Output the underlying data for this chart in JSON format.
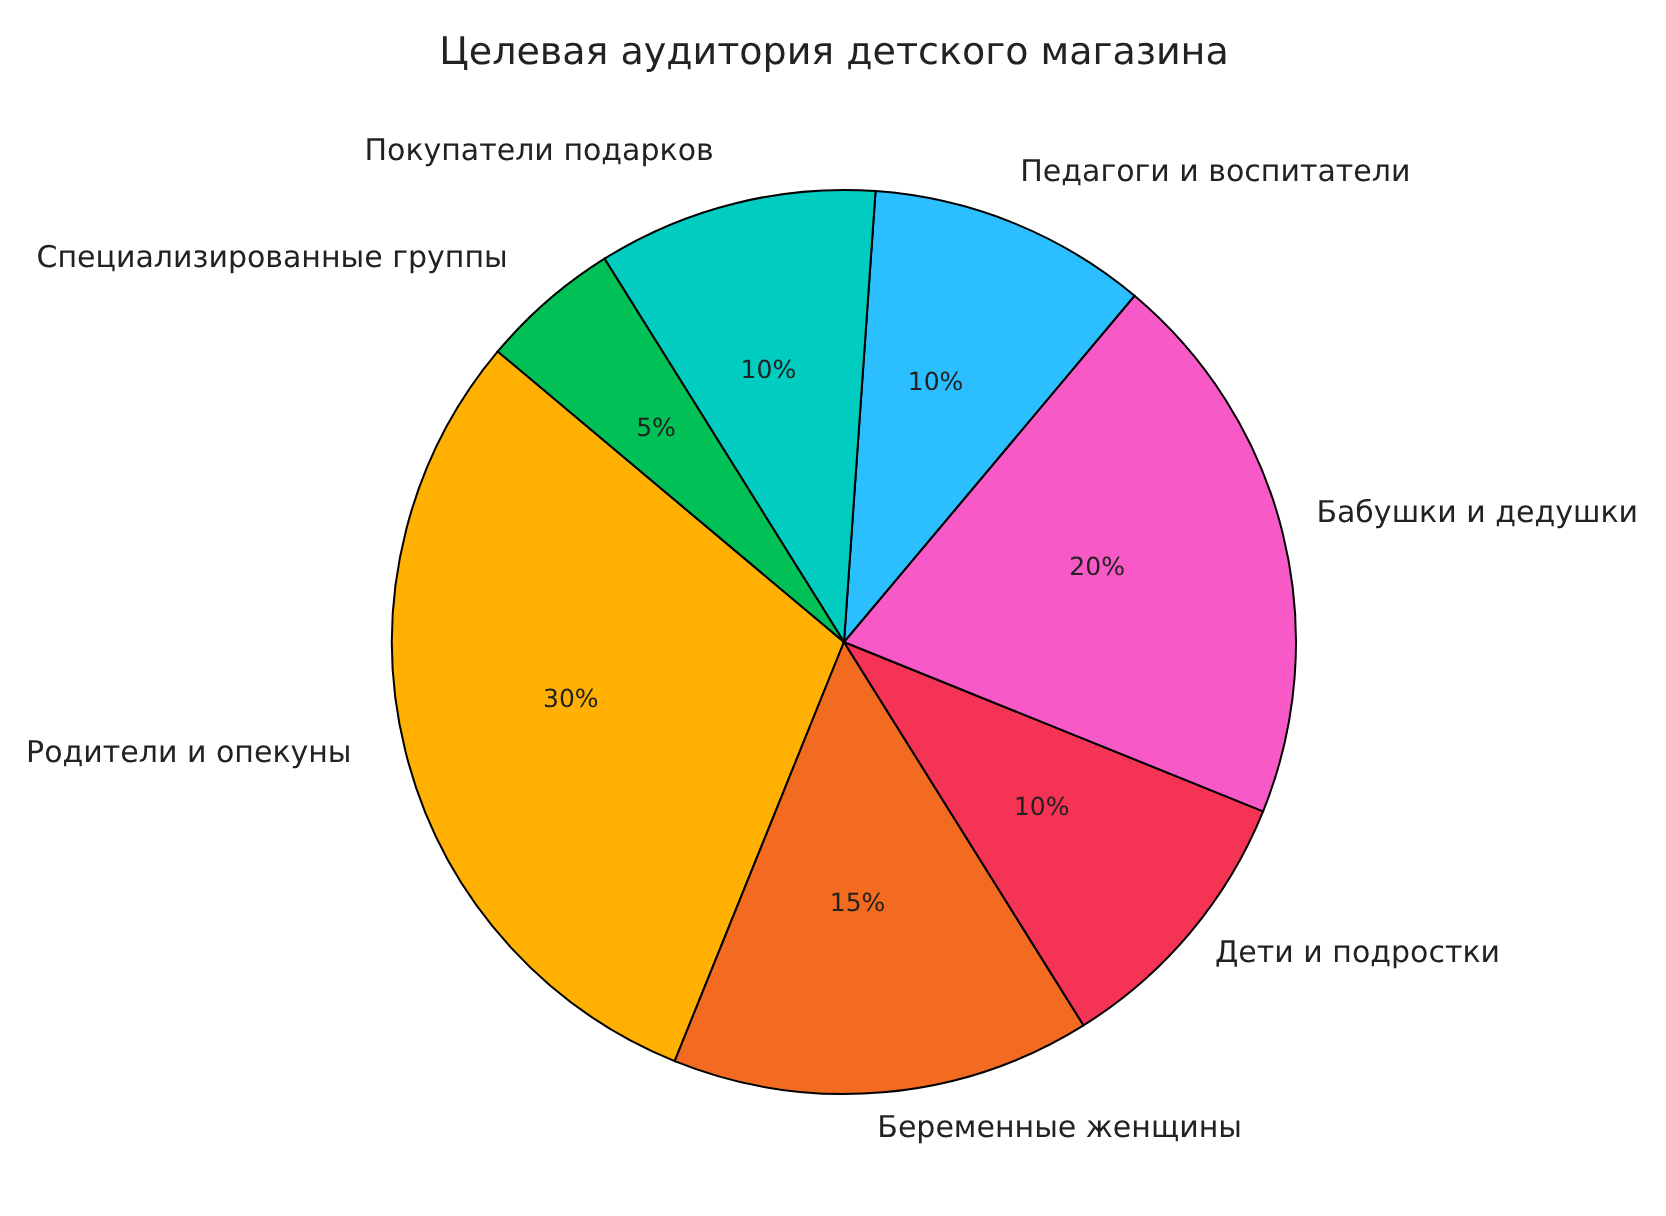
{
  "chart_data": {
    "type": "pie",
    "title": "Целевая аудитория детского магазина",
    "categories": [
      "Родители и опекуны",
      "Беременные женщины",
      "Дети и подростки",
      "Бабушки и дедушки",
      "Педагоги и воспитатели",
      "Покупатели подарков",
      "Специализированные группы"
    ],
    "values": [
      30,
      15,
      10,
      20,
      10,
      10,
      5
    ],
    "value_labels": [
      "30%",
      "15%",
      "10%",
      "20%",
      "10%",
      "10%",
      "5%"
    ],
    "colors": [
      "#ffb000",
      "#f26b21",
      "#f43355",
      "#f75ac6",
      "#2bbfff",
      "#00ccc0",
      "#00c056"
    ],
    "legend": false
  }
}
